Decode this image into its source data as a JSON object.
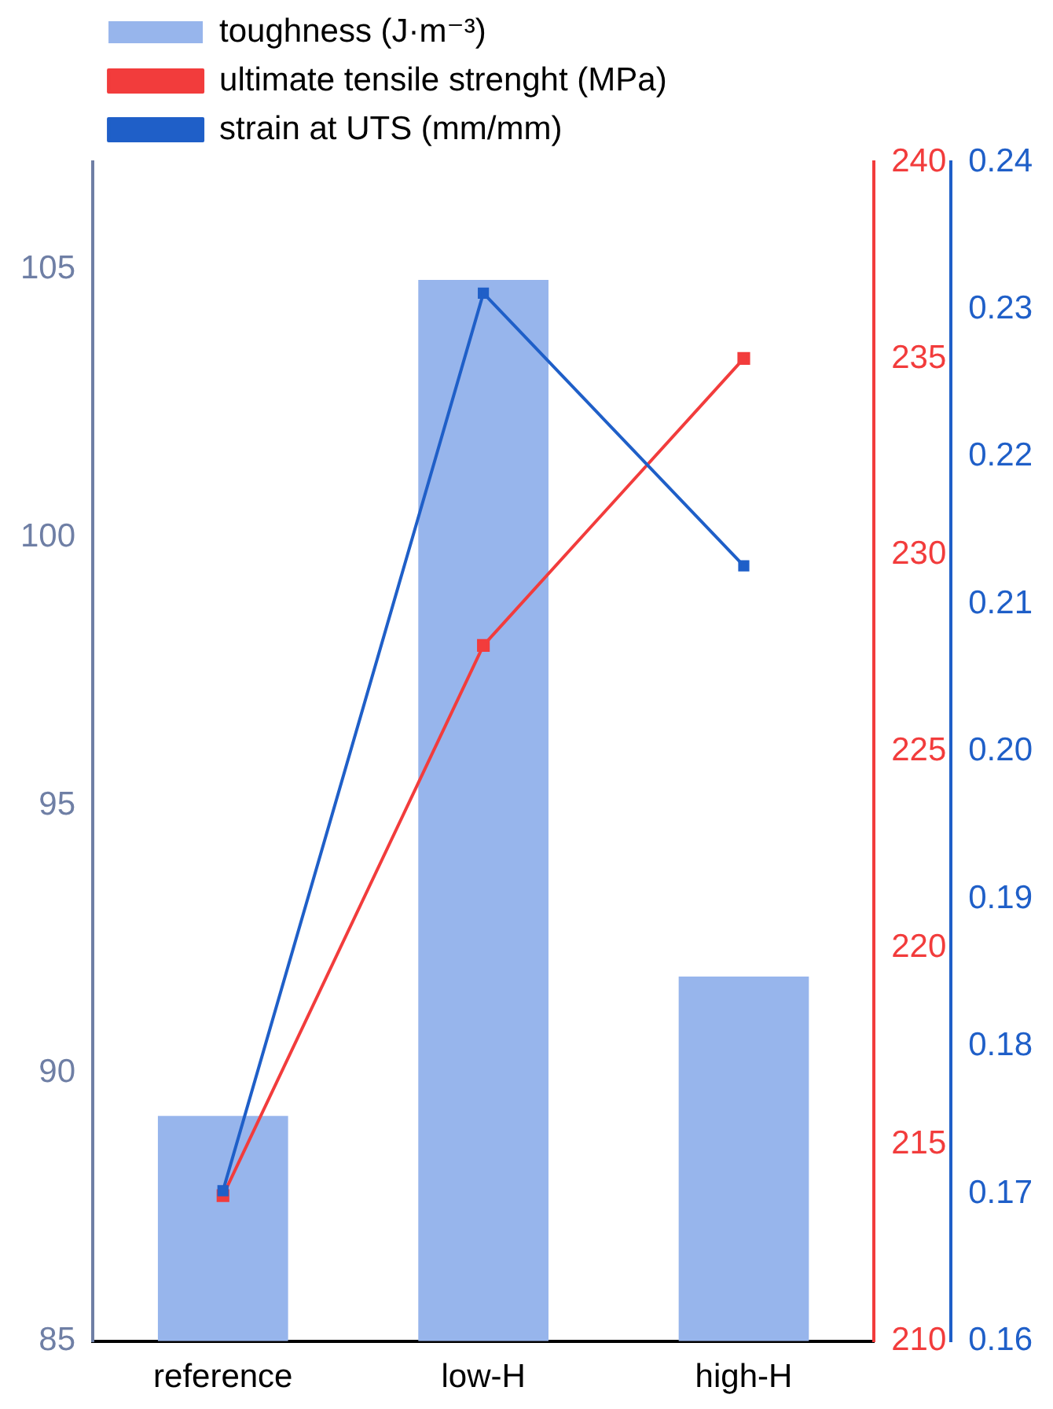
{
  "chart_data": {
    "type": "bar",
    "categories": [
      "reference",
      "low-H",
      "high-H"
    ],
    "series": [
      {
        "name": "toughness (J·m⁻³)",
        "color": "#97b5ec",
        "values": [
          89.2,
          104.8,
          91.8
        ]
      },
      {
        "name": "ultimate tensile strenght (MPa)",
        "type": "line",
        "color": "#f23c3c",
        "axis": "y2",
        "values": [
          213.7,
          227.7,
          235.0
        ]
      },
      {
        "name": "strain at UTS (mm/mm)",
        "type": "line",
        "color": "#1f5fc8",
        "axis": "y3",
        "values": [
          0.1702,
          0.2311,
          0.2126
        ]
      }
    ],
    "ylim": [
      85,
      107
    ],
    "yticks": [
      85,
      90,
      95,
      100,
      105
    ],
    "y2lim": [
      210,
      240
    ],
    "y2ticks": [
      210,
      215,
      220,
      225,
      230,
      235,
      240
    ],
    "y3lim": [
      0.16,
      0.24
    ],
    "y3ticks": [
      {
        "value": 0.16,
        "label": "0.16"
      },
      {
        "value": 0.17,
        "label": "0.17"
      },
      {
        "value": 0.18,
        "label": "0.18"
      },
      {
        "value": 0.19,
        "label": "0.19"
      },
      {
        "value": 0.2,
        "label": "0.20"
      },
      {
        "value": 0.21,
        "label": "0.21"
      },
      {
        "value": 0.22,
        "label": "0.22"
      },
      {
        "value": 0.23,
        "label": "0.23"
      },
      {
        "value": 0.24,
        "label": "0.24"
      }
    ],
    "grid": false,
    "legend": "top left",
    "marker": "square",
    "line_style": "solid"
  }
}
